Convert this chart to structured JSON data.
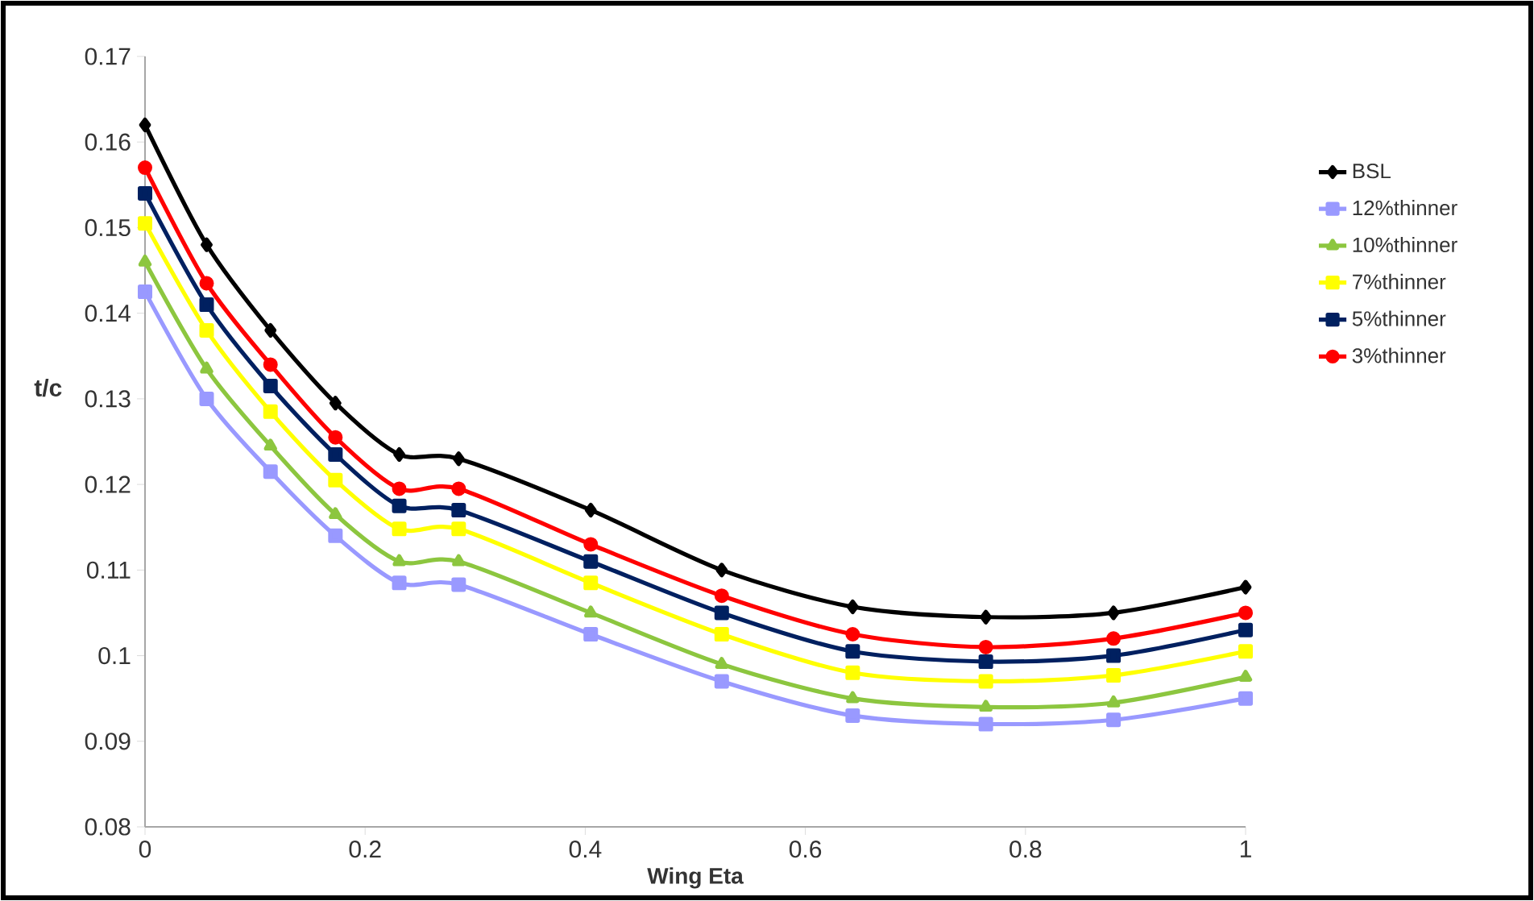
{
  "chart_data": {
    "type": "line",
    "xlabel": "Wing Eta",
    "ylabel": "t/c",
    "x": [
      0,
      0.056,
      0.114,
      0.173,
      0.231,
      0.285,
      0.405,
      0.524,
      0.643,
      0.764,
      0.88,
      1
    ],
    "series": [
      {
        "name": "BSL",
        "color": "#000000",
        "marker": "diamond",
        "values": [
          0.162,
          0.148,
          0.138,
          0.1295,
          0.1235,
          0.123,
          0.117,
          0.11,
          0.1057,
          0.1045,
          0.105,
          0.108
        ]
      },
      {
        "name": "12%thinner",
        "color": "#9999ff",
        "marker": "square",
        "values": [
          0.1425,
          0.13,
          0.1215,
          0.114,
          0.1085,
          0.1083,
          0.1025,
          0.097,
          0.093,
          0.092,
          0.0925,
          0.095
        ]
      },
      {
        "name": "10%thinner",
        "color": "#8cc63f",
        "marker": "triangle",
        "values": [
          0.146,
          0.1335,
          0.1245,
          0.1165,
          0.111,
          0.111,
          0.105,
          0.099,
          0.095,
          0.094,
          0.0945,
          0.0975
        ]
      },
      {
        "name": "7%thinner",
        "color": "#ffff00",
        "marker": "square",
        "values": [
          0.1505,
          0.138,
          0.1285,
          0.1205,
          0.1148,
          0.1148,
          0.1085,
          0.1025,
          0.098,
          0.097,
          0.0977,
          0.1005
        ]
      },
      {
        "name": "5%thinner",
        "color": "#002060",
        "marker": "square",
        "values": [
          0.154,
          0.141,
          0.1315,
          0.1235,
          0.1175,
          0.117,
          0.111,
          0.105,
          0.1005,
          0.0993,
          0.1,
          0.103
        ]
      },
      {
        "name": "3%thinner",
        "color": "#ff0000",
        "marker": "circle",
        "values": [
          0.157,
          0.1435,
          0.134,
          0.1255,
          0.1195,
          0.1195,
          0.113,
          0.107,
          0.1025,
          0.101,
          0.102,
          0.105
        ]
      }
    ],
    "xlim": [
      0,
      1
    ],
    "ylim": [
      0.08,
      0.17
    ],
    "xticks": [
      0,
      0.2,
      0.4,
      0.6,
      0.8,
      1
    ],
    "yticks": [
      0.08,
      0.09,
      0.1,
      0.11,
      0.12,
      0.13,
      0.14,
      0.15,
      0.16,
      0.17
    ],
    "grid": false,
    "legend": "right",
    "line_style": "solid"
  }
}
